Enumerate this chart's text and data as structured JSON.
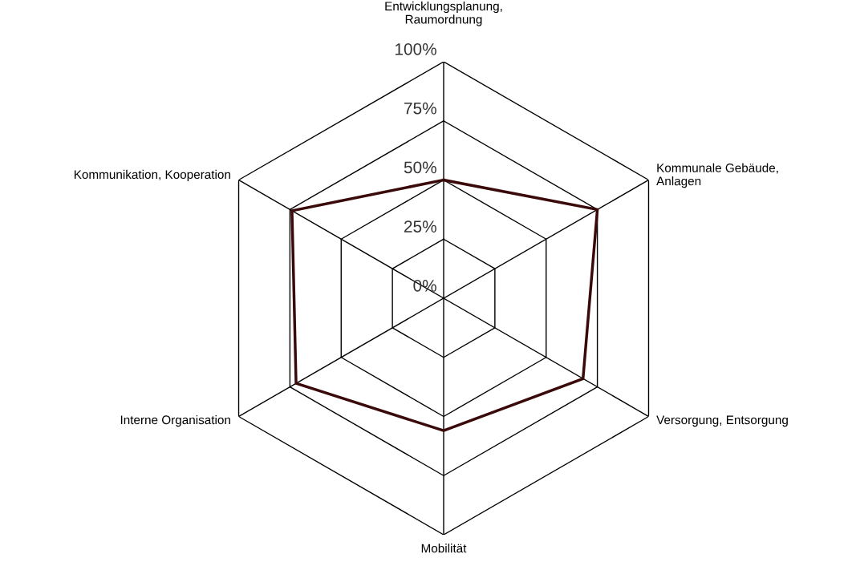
{
  "chart_data": {
    "type": "radar",
    "categories": [
      "Entwicklungsplanung,\nRaumordnung",
      "Kommunale Gebäude,\nAnlagen",
      "Versorgung, Entsorgung",
      "Mobilität",
      "Interne Organisation",
      "Kommunikation, Kooperation"
    ],
    "series": [
      {
        "color": "#3a0a0a",
        "values": [
          50,
          75,
          68,
          56,
          72,
          74
        ]
      }
    ],
    "ylim": [
      0,
      100
    ],
    "yticks": [
      {
        "value": 0,
        "label": "0%"
      },
      {
        "value": 25,
        "label": "25%"
      },
      {
        "value": 50,
        "label": "50%"
      },
      {
        "value": 75,
        "label": "75%"
      },
      {
        "value": 100,
        "label": "100%"
      }
    ],
    "grid": true,
    "marker": "none",
    "line_style": "solid"
  }
}
